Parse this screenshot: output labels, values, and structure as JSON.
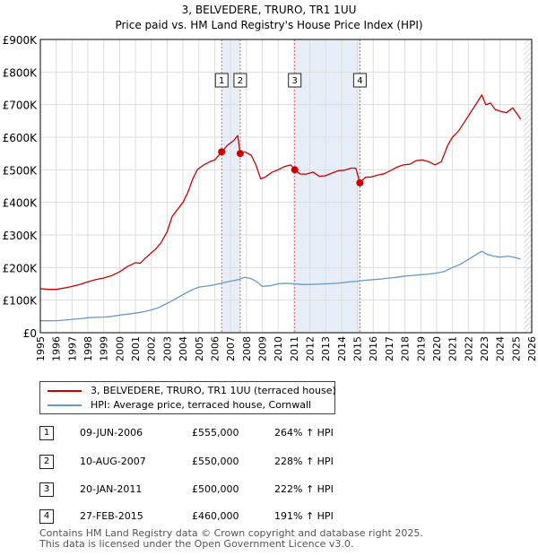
{
  "chart_data": {
    "type": "line",
    "title": "3, BELVEDERE, TRURO, TR1 1UU",
    "subtitle": "Price paid vs. HM Land Registry's House Price Index (HPI)",
    "xlim": [
      1995,
      2026
    ],
    "ylim": [
      0,
      900000
    ],
    "x_ticks": [
      "1995",
      "1996",
      "1997",
      "1998",
      "1999",
      "2000",
      "2001",
      "2002",
      "2003",
      "2004",
      "2005",
      "2006",
      "2007",
      "2008",
      "2009",
      "2010",
      "2011",
      "2012",
      "2013",
      "2014",
      "2015",
      "2016",
      "2017",
      "2018",
      "2019",
      "2020",
      "2021",
      "2022",
      "2023",
      "2024",
      "2025",
      "2026"
    ],
    "y_ticks": [
      {
        "value": 0,
        "label": "£0"
      },
      {
        "value": 100000,
        "label": "£100K"
      },
      {
        "value": 200000,
        "label": "£200K"
      },
      {
        "value": 300000,
        "label": "£300K"
      },
      {
        "value": 400000,
        "label": "£400K"
      },
      {
        "value": 500000,
        "label": "£500K"
      },
      {
        "value": 600000,
        "label": "£600K"
      },
      {
        "value": 700000,
        "label": "£700K"
      },
      {
        "value": 800000,
        "label": "£800K"
      },
      {
        "value": 900000,
        "label": "£900K"
      }
    ],
    "grid": true,
    "shaded_periods": [
      [
        2006.44,
        2007.61
      ],
      [
        2011.05,
        2015.16
      ]
    ],
    "future_hatch_from": 2025.5,
    "series": [
      {
        "name": "3, BELVEDERE, TRURO, TR1 1UU (terraced house)",
        "color": "#cc0000",
        "points": [
          [
            1995.0,
            135000
          ],
          [
            1995.5,
            133000
          ],
          [
            1996.0,
            133000
          ],
          [
            1996.5,
            137000
          ],
          [
            1997.0,
            142000
          ],
          [
            1997.5,
            148000
          ],
          [
            1998.0,
            156000
          ],
          [
            1998.5,
            163000
          ],
          [
            1999.0,
            168000
          ],
          [
            1999.5,
            175000
          ],
          [
            2000.0,
            187000
          ],
          [
            2000.5,
            203000
          ],
          [
            2001.0,
            215000
          ],
          [
            2001.3,
            213000
          ],
          [
            2001.6,
            228000
          ],
          [
            2002.0,
            245000
          ],
          [
            2002.3,
            258000
          ],
          [
            2002.6,
            275000
          ],
          [
            2003.0,
            310000
          ],
          [
            2003.3,
            355000
          ],
          [
            2003.6,
            375000
          ],
          [
            2004.0,
            400000
          ],
          [
            2004.3,
            430000
          ],
          [
            2004.6,
            470000
          ],
          [
            2004.9,
            500000
          ],
          [
            2005.3,
            515000
          ],
          [
            2005.7,
            525000
          ],
          [
            2006.0,
            530000
          ],
          [
            2006.44,
            555000
          ],
          [
            2006.8,
            575000
          ],
          [
            2007.2,
            590000
          ],
          [
            2007.45,
            605000
          ],
          [
            2007.61,
            550000
          ],
          [
            2007.9,
            555000
          ],
          [
            2008.3,
            545000
          ],
          [
            2008.6,
            515000
          ],
          [
            2008.9,
            472000
          ],
          [
            2009.2,
            478000
          ],
          [
            2009.6,
            492000
          ],
          [
            2010.0,
            500000
          ],
          [
            2010.4,
            510000
          ],
          [
            2010.8,
            515000
          ],
          [
            2011.05,
            500000
          ],
          [
            2011.4,
            487000
          ],
          [
            2011.8,
            487000
          ],
          [
            2012.2,
            493000
          ],
          [
            2012.6,
            480000
          ],
          [
            2013.0,
            482000
          ],
          [
            2013.4,
            490000
          ],
          [
            2013.8,
            497000
          ],
          [
            2014.2,
            499000
          ],
          [
            2014.6,
            505000
          ],
          [
            2014.9,
            505000
          ],
          [
            2015.16,
            460000
          ],
          [
            2015.5,
            477000
          ],
          [
            2015.9,
            478000
          ],
          [
            2016.3,
            484000
          ],
          [
            2016.7,
            488000
          ],
          [
            2017.1,
            498000
          ],
          [
            2017.5,
            508000
          ],
          [
            2017.9,
            515000
          ],
          [
            2018.3,
            517000
          ],
          [
            2018.7,
            528000
          ],
          [
            2019.1,
            530000
          ],
          [
            2019.5,
            525000
          ],
          [
            2019.9,
            515000
          ],
          [
            2020.3,
            525000
          ],
          [
            2020.7,
            575000
          ],
          [
            2021.0,
            600000
          ],
          [
            2021.4,
            620000
          ],
          [
            2021.8,
            650000
          ],
          [
            2022.2,
            680000
          ],
          [
            2022.6,
            710000
          ],
          [
            2022.85,
            730000
          ],
          [
            2023.1,
            700000
          ],
          [
            2023.4,
            705000
          ],
          [
            2023.7,
            685000
          ],
          [
            2024.0,
            680000
          ],
          [
            2024.4,
            675000
          ],
          [
            2024.8,
            690000
          ],
          [
            2025.1,
            670000
          ],
          [
            2025.3,
            655000
          ]
        ]
      },
      {
        "name": "HPI: Average price, terraced house, Cornwall",
        "color": "#6699cc",
        "points": [
          [
            1995.0,
            37000
          ],
          [
            1995.5,
            36500
          ],
          [
            1996.0,
            37000
          ],
          [
            1996.5,
            38500
          ],
          [
            1997.0,
            41000
          ],
          [
            1997.5,
            43000
          ],
          [
            1998.0,
            46000
          ],
          [
            1998.5,
            47000
          ],
          [
            1999.0,
            48000
          ],
          [
            1999.5,
            50000
          ],
          [
            2000.0,
            54000
          ],
          [
            2000.5,
            57000
          ],
          [
            2001.0,
            60000
          ],
          [
            2001.5,
            64000
          ],
          [
            2002.0,
            70000
          ],
          [
            2002.5,
            78000
          ],
          [
            2003.0,
            90000
          ],
          [
            2003.5,
            103000
          ],
          [
            2004.0,
            117000
          ],
          [
            2004.5,
            130000
          ],
          [
            2005.0,
            140000
          ],
          [
            2005.5,
            143000
          ],
          [
            2006.0,
            147000
          ],
          [
            2006.5,
            153000
          ],
          [
            2007.0,
            158000
          ],
          [
            2007.5,
            163000
          ],
          [
            2007.9,
            170000
          ],
          [
            2008.3,
            166000
          ],
          [
            2008.7,
            155000
          ],
          [
            2009.0,
            142000
          ],
          [
            2009.5,
            144000
          ],
          [
            2010.0,
            150000
          ],
          [
            2010.5,
            152000
          ],
          [
            2011.0,
            150000
          ],
          [
            2011.5,
            148000
          ],
          [
            2012.0,
            148000
          ],
          [
            2012.5,
            149000
          ],
          [
            2013.0,
            150000
          ],
          [
            2013.5,
            151000
          ],
          [
            2014.0,
            153000
          ],
          [
            2014.5,
            156000
          ],
          [
            2015.0,
            158000
          ],
          [
            2015.5,
            161000
          ],
          [
            2016.0,
            163000
          ],
          [
            2016.5,
            165000
          ],
          [
            2017.0,
            168000
          ],
          [
            2017.5,
            170000
          ],
          [
            2018.0,
            174000
          ],
          [
            2018.5,
            176000
          ],
          [
            2019.0,
            178000
          ],
          [
            2019.5,
            180000
          ],
          [
            2020.0,
            183000
          ],
          [
            2020.5,
            188000
          ],
          [
            2021.0,
            200000
          ],
          [
            2021.5,
            210000
          ],
          [
            2022.0,
            225000
          ],
          [
            2022.5,
            240000
          ],
          [
            2022.85,
            250000
          ],
          [
            2023.2,
            240000
          ],
          [
            2023.6,
            235000
          ],
          [
            2024.0,
            232000
          ],
          [
            2024.5,
            235000
          ],
          [
            2025.0,
            230000
          ],
          [
            2025.3,
            226000
          ]
        ]
      }
    ],
    "markers": [
      {
        "label": "1",
        "x": 2006.44,
        "y": 555000
      },
      {
        "label": "2",
        "x": 2007.61,
        "y": 550000
      },
      {
        "label": "3",
        "x": 2011.05,
        "y": 500000
      },
      {
        "label": "4",
        "x": 2015.16,
        "y": 460000
      }
    ]
  },
  "legend": {
    "red_label": "3, BELVEDERE, TRURO, TR1 1UU (terraced house)",
    "blue_label": "HPI: Average price, terraced house, Cornwall"
  },
  "transactions": [
    {
      "num": "1",
      "date": "09-JUN-2006",
      "price": "£555,000",
      "hpi": "264% ↑ HPI"
    },
    {
      "num": "2",
      "date": "10-AUG-2007",
      "price": "£550,000",
      "hpi": "228% ↑ HPI"
    },
    {
      "num": "3",
      "date": "20-JAN-2011",
      "price": "£500,000",
      "hpi": "222% ↑ HPI"
    },
    {
      "num": "4",
      "date": "27-FEB-2015",
      "price": "£460,000",
      "hpi": "191% ↑ HPI"
    }
  ],
  "footer": {
    "line1": "Contains HM Land Registry data © Crown copyright and database right 2025.",
    "line2": "This data is licensed under the Open Government Licence v3.0."
  }
}
